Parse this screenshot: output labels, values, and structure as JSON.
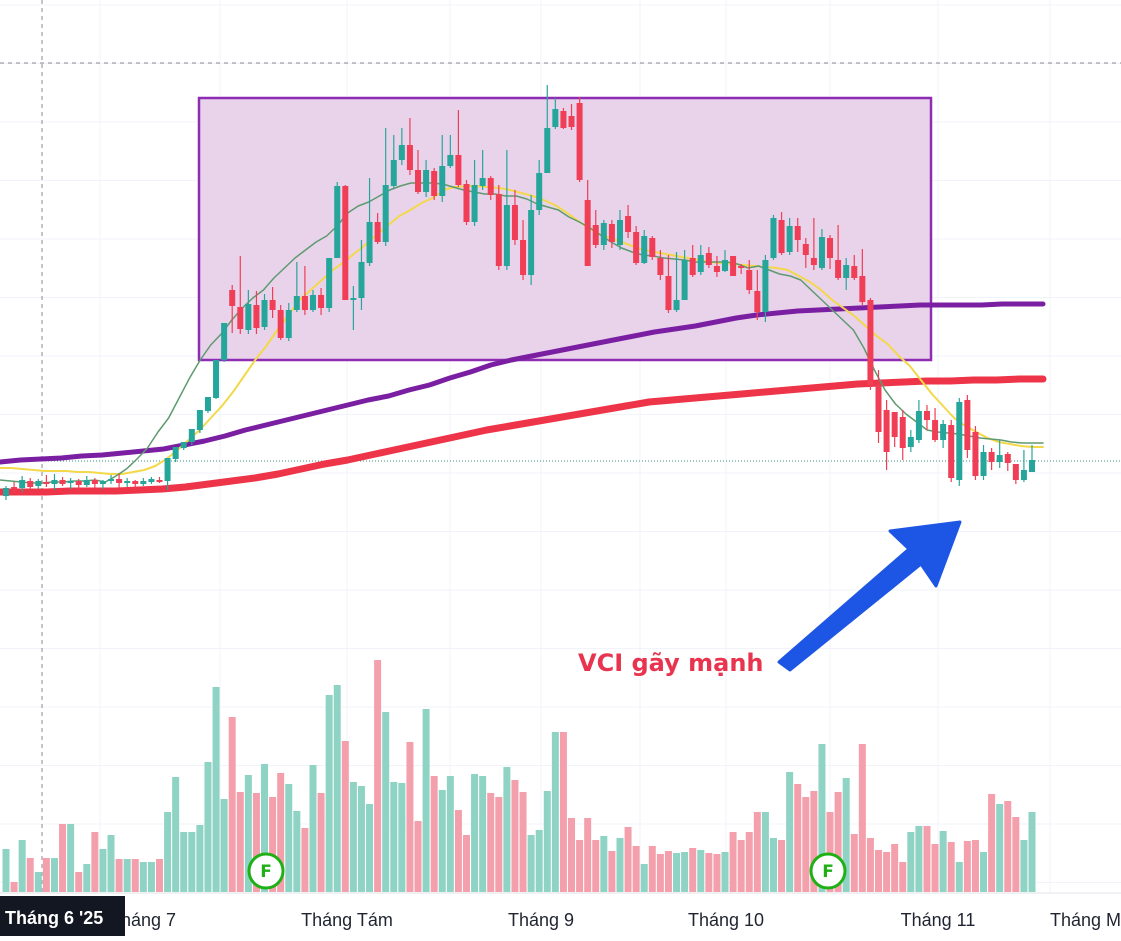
{
  "chart_data": {
    "type": "candlestick",
    "title": "",
    "annotation": {
      "text": "VCI gãy mạnh",
      "color": "#e8344e"
    },
    "arrow_color": "#1d55e4",
    "colors": {
      "up": "#26a69a",
      "down": "#ef3e55",
      "volume_up": "#8fd3c4",
      "volume_down": "#f4a0ac",
      "zone_fill": "#e9d3eb",
      "zone_border": "#8e2cb4",
      "ma_fast": "#5e9a6f",
      "ma_mid": "#f3d84a",
      "ma_long": "#7b1fa2",
      "ma_longest": "#ee3448",
      "marker_border": "#1fb015",
      "crosshair_tag_bg": "#131722"
    },
    "x_axis_labels": [
      "Tháng 7",
      "Tháng Tám",
      "Tháng 9",
      "Tháng 10",
      "Tháng 11",
      "Tháng M"
    ],
    "crosshair_label": "Tháng 6 '25",
    "event_markers": [
      "F",
      "F"
    ],
    "candles": [
      [
        496,
        488,
        500,
        486
      ],
      [
        487,
        489,
        493,
        482
      ],
      [
        488,
        480,
        492,
        476
      ],
      [
        481,
        487,
        490,
        478
      ],
      [
        486,
        481,
        489,
        479
      ],
      [
        482,
        484,
        487,
        475
      ],
      [
        484,
        480,
        490,
        474
      ],
      [
        480,
        484,
        486,
        477
      ],
      [
        483,
        481,
        489,
        478
      ],
      [
        481,
        485,
        490,
        479
      ],
      [
        485,
        480,
        487,
        476
      ],
      [
        480,
        484,
        488,
        478
      ],
      [
        484,
        481,
        489,
        480
      ],
      [
        481,
        479,
        484,
        475
      ],
      [
        479,
        483,
        488,
        474
      ],
      [
        483,
        481,
        487,
        478
      ],
      [
        481,
        484,
        489,
        480
      ],
      [
        484,
        481,
        486,
        478
      ],
      [
        482,
        479,
        484,
        477
      ],
      [
        480,
        481,
        483,
        477
      ],
      [
        481,
        458,
        466,
        490
      ],
      [
        459,
        447,
        452,
        462
      ],
      [
        448,
        442,
        446,
        450
      ],
      [
        442,
        429,
        434,
        445
      ],
      [
        430,
        410,
        419,
        433
      ],
      [
        411,
        397,
        403,
        413
      ],
      [
        398,
        360,
        362,
        399
      ],
      [
        360,
        323,
        325,
        362
      ],
      [
        290,
        306,
        333,
        285
      ],
      [
        307,
        329,
        334,
        256
      ],
      [
        330,
        304,
        334,
        290
      ],
      [
        305,
        328,
        334,
        291
      ],
      [
        327,
        300,
        330,
        294
      ],
      [
        300,
        310,
        318,
        287
      ],
      [
        310,
        338,
        340,
        305
      ],
      [
        338,
        310,
        341,
        303
      ],
      [
        310,
        296,
        312,
        262
      ],
      [
        296,
        310,
        315,
        266
      ],
      [
        310,
        295,
        312,
        290
      ],
      [
        295,
        308,
        315,
        288
      ],
      [
        308,
        258,
        312,
        258
      ],
      [
        258,
        186,
        258,
        182
      ],
      [
        186,
        300,
        300,
        185
      ],
      [
        300,
        298,
        330,
        286
      ],
      [
        298,
        262,
        310,
        240
      ],
      [
        263,
        222,
        266,
        178
      ],
      [
        222,
        242,
        244,
        213
      ],
      [
        242,
        185,
        246,
        128
      ],
      [
        186,
        160,
        188,
        135
      ],
      [
        160,
        145,
        165,
        128
      ],
      [
        145,
        170,
        175,
        118
      ],
      [
        170,
        192,
        194,
        150
      ],
      [
        192,
        170,
        197,
        160
      ],
      [
        171,
        196,
        200,
        168
      ],
      [
        196,
        166,
        202,
        135
      ],
      [
        166,
        155,
        168,
        135
      ],
      [
        155,
        185,
        187,
        110
      ],
      [
        184,
        222,
        225,
        180
      ],
      [
        222,
        185,
        226,
        160
      ],
      [
        186,
        178,
        190,
        150
      ],
      [
        178,
        195,
        200,
        176
      ],
      [
        194,
        266,
        270,
        185
      ],
      [
        266,
        205,
        270,
        150
      ],
      [
        205,
        240,
        245,
        190
      ],
      [
        240,
        275,
        280,
        220
      ],
      [
        275,
        210,
        285,
        195
      ],
      [
        210,
        173,
        215,
        160
      ],
      [
        173,
        128,
        172,
        85
      ],
      [
        127,
        109,
        129,
        98
      ],
      [
        111,
        128,
        129,
        108
      ],
      [
        116,
        127,
        130,
        104
      ],
      [
        103,
        180,
        182,
        97
      ],
      [
        200,
        266,
        266,
        180
      ],
      [
        225,
        245,
        248,
        210
      ],
      [
        245,
        223,
        250,
        220
      ],
      [
        224,
        242,
        248,
        220
      ],
      [
        245,
        220,
        250,
        210
      ],
      [
        216,
        232,
        238,
        205
      ],
      [
        232,
        263,
        265,
        226
      ],
      [
        263,
        236,
        264,
        230
      ],
      [
        238,
        257,
        260,
        236
      ],
      [
        258,
        275,
        280,
        250
      ],
      [
        276,
        310,
        313,
        255
      ],
      [
        310,
        300,
        312,
        252
      ],
      [
        300,
        260,
        300,
        250
      ],
      [
        258,
        275,
        277,
        245
      ],
      [
        272,
        255,
        275,
        245
      ],
      [
        253,
        265,
        268,
        247
      ],
      [
        266,
        272,
        277,
        256
      ],
      [
        271,
        260,
        272,
        250
      ],
      [
        256,
        276,
        270,
        258
      ],
      [
        266,
        268,
        274,
        264
      ],
      [
        270,
        290,
        294,
        260
      ],
      [
        291,
        312,
        320,
        270
      ],
      [
        312,
        260,
        322,
        255
      ],
      [
        258,
        218,
        260,
        215
      ],
      [
        220,
        253,
        255,
        212
      ],
      [
        252,
        226,
        255,
        218
      ],
      [
        226,
        240,
        252,
        218
      ],
      [
        244,
        255,
        268,
        238
      ],
      [
        258,
        265,
        270,
        218
      ],
      [
        268,
        237,
        270,
        229
      ],
      [
        238,
        258,
        269,
        235
      ],
      [
        260,
        278,
        280,
        225
      ],
      [
        278,
        265,
        290,
        258
      ],
      [
        266,
        278,
        280,
        255
      ],
      [
        276,
        302,
        305,
        249
      ],
      [
        300,
        385,
        390,
        298
      ],
      [
        385,
        432,
        443,
        370
      ],
      [
        410,
        452,
        470,
        400
      ],
      [
        412,
        437,
        447,
        412
      ],
      [
        417,
        448,
        460,
        410
      ],
      [
        447,
        437,
        452,
        430
      ],
      [
        440,
        411,
        443,
        400
      ],
      [
        411,
        420,
        430,
        405
      ],
      [
        420,
        440,
        442,
        408
      ],
      [
        440,
        424,
        448,
        420
      ],
      [
        425,
        478,
        482,
        420
      ],
      [
        480,
        402,
        486,
        398
      ],
      [
        400,
        450,
        458,
        395
      ],
      [
        432,
        476,
        480,
        426
      ],
      [
        476,
        452,
        480,
        445
      ],
      [
        452,
        462,
        470,
        448
      ],
      [
        462,
        455,
        468,
        440
      ],
      [
        454,
        463,
        471,
        452
      ],
      [
        464,
        480,
        484,
        465
      ],
      [
        480,
        470,
        482,
        450
      ],
      [
        472,
        460,
        468,
        445
      ]
    ],
    "volumes": [
      43,
      10,
      52,
      34,
      20,
      34,
      34,
      68,
      68,
      20,
      28,
      60,
      43,
      57,
      33,
      33,
      33,
      30,
      30,
      33,
      80,
      115,
      60,
      60,
      67,
      130,
      205,
      93,
      175,
      100,
      117,
      99,
      128,
      95,
      119,
      108,
      81,
      64,
      127,
      99,
      197,
      207,
      151,
      110,
      106,
      88,
      232,
      180,
      110,
      109,
      150,
      71,
      183,
      116,
      102,
      116,
      82,
      57,
      118,
      116,
      99,
      95,
      125,
      112,
      100,
      57,
      62,
      101,
      160,
      160,
      74,
      52,
      74,
      52,
      56,
      41,
      54,
      65,
      46,
      28,
      46,
      38,
      41,
      39,
      40,
      44,
      42,
      39,
      38,
      40,
      60,
      52,
      60,
      80,
      80,
      54,
      52,
      120,
      108,
      95,
      101,
      148,
      80,
      100,
      114,
      58,
      148,
      54,
      42,
      40,
      48,
      30,
      60,
      66,
      66,
      48,
      61,
      50,
      30,
      51,
      52,
      40,
      98,
      88,
      91,
      75,
      52,
      80
    ],
    "ma_fast_values": [
      480,
      481,
      482,
      483,
      483,
      482,
      482,
      481,
      481,
      480,
      482,
      476,
      469,
      459,
      448,
      432,
      418,
      398,
      378,
      360,
      345,
      334,
      320,
      308,
      298,
      290,
      278,
      268,
      258,
      250,
      242,
      236,
      226,
      213,
      206,
      202,
      196,
      190,
      186,
      183,
      183,
      183,
      184,
      187,
      190,
      192,
      194,
      194,
      196,
      196,
      199,
      204,
      207,
      210,
      217,
      222,
      228,
      235,
      242,
      248,
      252,
      255,
      256,
      258,
      259,
      260,
      262,
      262,
      262,
      262,
      264,
      268,
      266,
      270,
      274,
      276,
      280,
      290,
      300,
      310,
      320,
      330,
      348,
      370,
      390,
      404,
      414,
      422,
      430,
      432,
      433,
      434,
      436,
      438,
      439,
      440,
      442,
      443,
      443,
      443
    ],
    "ma_mid_values": [
      468,
      468,
      469,
      470,
      471,
      471,
      471,
      472,
      472,
      473,
      474,
      474,
      472,
      470,
      466,
      459,
      450,
      440,
      430,
      418,
      406,
      392,
      376,
      360,
      346,
      330,
      315,
      300,
      290,
      280,
      270,
      262,
      253,
      244,
      234,
      225,
      216,
      210,
      203,
      198,
      190,
      187,
      186,
      186,
      187,
      188,
      190,
      193,
      196,
      200,
      205,
      212,
      220,
      228,
      234,
      238,
      242,
      246,
      250,
      252,
      254,
      256,
      258,
      260,
      262,
      263,
      264,
      265,
      266,
      267,
      268,
      270,
      276,
      282,
      290,
      300,
      308,
      316,
      326,
      336,
      344,
      356,
      366,
      380,
      394,
      406,
      418,
      426,
      432,
      438,
      442,
      444,
      446,
      447,
      447
    ],
    "ma_long_values": [
      462,
      460,
      459,
      458,
      456,
      455,
      453,
      451,
      449,
      445,
      441,
      436,
      430,
      425,
      420,
      415,
      410,
      405,
      400,
      396,
      390,
      385,
      378,
      372,
      365,
      360,
      356,
      352,
      348,
      344,
      340,
      336,
      332,
      329,
      326,
      322,
      318,
      315,
      313,
      311,
      310,
      309,
      308,
      307,
      306,
      305,
      305,
      305,
      305,
      304,
      304,
      304
    ],
    "ma_longest_values": [
      492,
      492,
      492,
      491,
      491,
      491,
      490,
      489,
      487,
      484,
      481,
      478,
      474,
      469,
      464,
      460,
      455,
      450,
      445,
      440,
      435,
      430,
      426,
      422,
      418,
      414,
      410,
      406,
      402,
      400,
      398,
      396,
      394,
      392,
      390,
      388,
      386,
      384,
      383,
      382,
      381,
      381,
      380,
      380,
      379,
      379
    ]
  }
}
